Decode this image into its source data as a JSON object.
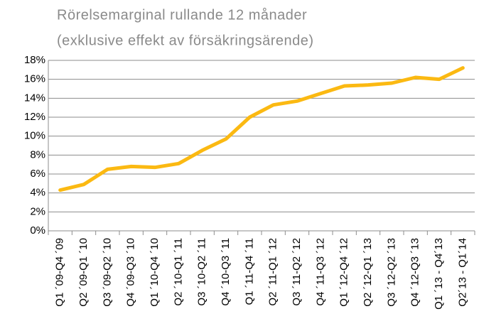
{
  "chart_data": {
    "type": "line",
    "title": "Rörelsemarginal rullande 12 månader",
    "subtitle": "(exklusive effekt av försäkringsärende)",
    "categories": [
      "Q1 ´09-Q4 ´09",
      "Q2 ´09-Q1 ´10",
      "Q3 ´09-Q2 ´10",
      "Q4 ´09-Q3 ´10",
      "Q1 ´10-Q4 ´10",
      "Q2 ´10-Q1 ´11",
      "Q3 ´10-Q2 ´11",
      "Q4 ´10-Q3 ´11",
      "Q1 ´11-Q4 ´11",
      "Q2 ´11-Q1 ´12",
      "Q3 ´11-Q2 ´12",
      "Q4 ´11-Q3 ´12",
      "Q1 ´12-Q4 ´12",
      "Q2 ´12-Q1 ´13",
      "Q3 ´12-Q2 ´13",
      "Q4 ´12-Q3 ´13",
      "Q1 ´13 - Q4´13",
      "Q2´13 - Q1´14"
    ],
    "values": [
      4.3,
      4.9,
      6.5,
      6.8,
      6.7,
      7.1,
      8.5,
      9.7,
      12.0,
      13.3,
      13.7,
      14.5,
      15.3,
      15.4,
      15.6,
      16.2,
      16.0,
      17.2
    ],
    "color": "#fbb912",
    "ylim": [
      0,
      18
    ],
    "yticks": [
      {
        "value": 0,
        "label": "0%"
      },
      {
        "value": 2,
        "label": "2%"
      },
      {
        "value": 4,
        "label": "4%"
      },
      {
        "value": 6,
        "label": "6%"
      },
      {
        "value": 8,
        "label": "8%"
      },
      {
        "value": 10,
        "label": "10%"
      },
      {
        "value": 12,
        "label": "12%"
      },
      {
        "value": 14,
        "label": "14%"
      },
      {
        "value": 16,
        "label": "16%"
      },
      {
        "value": 18,
        "label": "18%"
      }
    ],
    "grid": true
  }
}
